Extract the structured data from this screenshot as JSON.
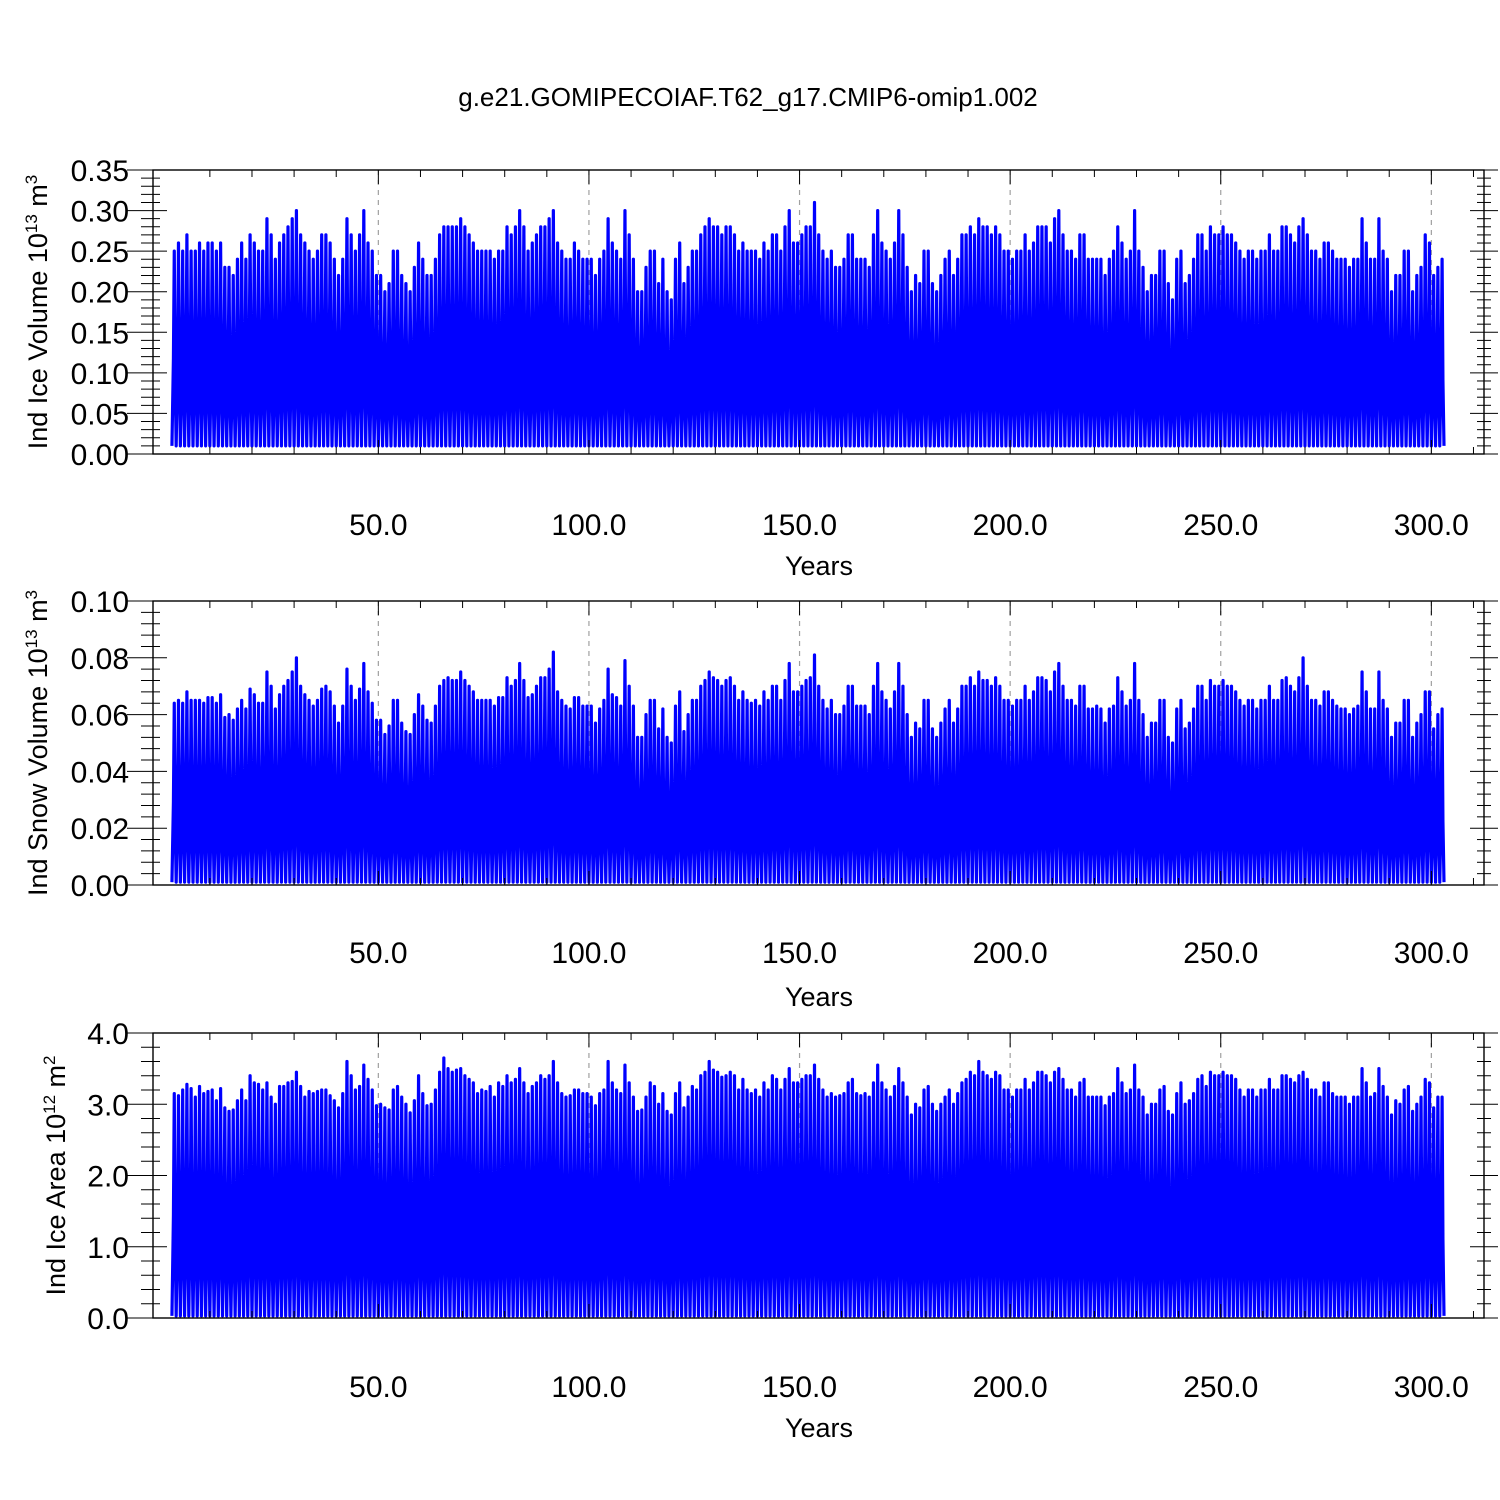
{
  "title": "g.e21.GOMIPECOIAF.T62_g17.CMIP6-omip1.002",
  "colors": {
    "series": "#0000ff",
    "frame": "#000000",
    "grid": "#a0a0a0",
    "background": "#ffffff"
  },
  "chart_data": [
    {
      "type": "line",
      "ylabel": {
        "pre": "Ind Ice Volume 10",
        "exp": "13",
        "mid": " m",
        "exp2": "3"
      },
      "xlabel": "Years",
      "xlim": [
        -3.5,
        312.5
      ],
      "ylim": [
        0,
        0.35
      ],
      "xticks": [
        50,
        100,
        150,
        200,
        250,
        300
      ],
      "xtick_labels": [
        "50.0",
        "100.0",
        "150.0",
        "200.0",
        "250.0",
        "300.0"
      ],
      "yticks": [
        0,
        0.05,
        0.1,
        0.15,
        0.2,
        0.25,
        0.3,
        0.35
      ],
      "ytick_labels": [
        "0.00",
        "0.05",
        "0.10",
        "0.15",
        "0.20",
        "0.25",
        "0.30",
        "0.35"
      ],
      "grid": "vertical dashed at major x ticks",
      "x_start": 1,
      "year_step": 1,
      "min_value": 0.01,
      "annual_max": [
        0.25,
        0.26,
        0.25,
        0.27,
        0.25,
        0.25,
        0.26,
        0.25,
        0.26,
        0.26,
        0.25,
        0.26,
        0.23,
        0.23,
        0.22,
        0.24,
        0.26,
        0.24,
        0.27,
        0.26,
        0.25,
        0.25,
        0.29,
        0.27,
        0.24,
        0.26,
        0.27,
        0.28,
        0.29,
        0.3,
        0.27,
        0.26,
        0.25,
        0.24,
        0.25,
        0.27,
        0.27,
        0.26,
        0.24,
        0.22,
        0.24,
        0.29,
        0.27,
        0.25,
        0.27,
        0.3,
        0.26,
        0.25,
        0.22,
        0.22,
        0.2,
        0.21,
        0.25,
        0.25,
        0.22,
        0.21,
        0.2,
        0.23,
        0.26,
        0.24,
        0.22,
        0.22,
        0.24,
        0.27,
        0.28,
        0.28,
        0.28,
        0.28,
        0.29,
        0.28,
        0.27,
        0.26,
        0.25,
        0.25,
        0.25,
        0.25,
        0.24,
        0.25,
        0.25,
        0.28,
        0.27,
        0.28,
        0.3,
        0.28,
        0.25,
        0.26,
        0.27,
        0.28,
        0.28,
        0.29,
        0.3,
        0.26,
        0.25,
        0.24,
        0.24,
        0.26,
        0.25,
        0.24,
        0.24,
        0.24,
        0.22,
        0.24,
        0.25,
        0.29,
        0.26,
        0.25,
        0.24,
        0.3,
        0.27,
        0.24,
        0.2,
        0.2,
        0.23,
        0.25,
        0.25,
        0.21,
        0.24,
        0.2,
        0.19,
        0.24,
        0.26,
        0.21,
        0.23,
        0.25,
        0.25,
        0.27,
        0.28,
        0.29,
        0.28,
        0.28,
        0.27,
        0.28,
        0.28,
        0.27,
        0.25,
        0.26,
        0.25,
        0.25,
        0.25,
        0.24,
        0.26,
        0.25,
        0.27,
        0.27,
        0.25,
        0.28,
        0.3,
        0.26,
        0.26,
        0.27,
        0.28,
        0.28,
        0.31,
        0.27,
        0.25,
        0.24,
        0.25,
        0.23,
        0.23,
        0.24,
        0.27,
        0.27,
        0.24,
        0.24,
        0.24,
        0.23,
        0.27,
        0.3,
        0.26,
        0.25,
        0.24,
        0.26,
        0.3,
        0.27,
        0.23,
        0.2,
        0.22,
        0.21,
        0.25,
        0.25,
        0.21,
        0.2,
        0.22,
        0.24,
        0.25,
        0.22,
        0.24,
        0.27,
        0.27,
        0.28,
        0.27,
        0.29,
        0.28,
        0.28,
        0.27,
        0.28,
        0.27,
        0.25,
        0.25,
        0.24,
        0.25,
        0.25,
        0.27,
        0.25,
        0.26,
        0.28,
        0.28,
        0.28,
        0.26,
        0.29,
        0.3,
        0.27,
        0.25,
        0.25,
        0.24,
        0.27,
        0.27,
        0.24,
        0.24,
        0.24,
        0.24,
        0.22,
        0.24,
        0.25,
        0.28,
        0.26,
        0.24,
        0.25,
        0.3,
        0.25,
        0.23,
        0.2,
        0.22,
        0.22,
        0.25,
        0.25,
        0.21,
        0.19,
        0.24,
        0.25,
        0.21,
        0.22,
        0.24,
        0.27,
        0.27,
        0.25,
        0.28,
        0.27,
        0.27,
        0.28,
        0.27,
        0.27,
        0.26,
        0.25,
        0.24,
        0.25,
        0.25,
        0.24,
        0.25,
        0.25,
        0.27,
        0.25,
        0.25,
        0.28,
        0.28,
        0.27,
        0.26,
        0.28,
        0.29,
        0.27,
        0.25,
        0.25,
        0.24,
        0.26,
        0.26,
        0.25,
        0.24,
        0.24,
        0.24,
        0.23,
        0.24,
        0.24,
        0.29,
        0.26,
        0.24,
        0.24,
        0.29,
        0.25,
        0.24,
        0.2,
        0.22,
        0.22,
        0.25,
        0.25,
        0.2,
        0.22,
        0.23,
        0.27,
        0.26,
        0.22,
        0.23,
        0.24
      ]
    },
    {
      "type": "line",
      "ylabel": {
        "pre": "Ind Snow Volume 10",
        "exp": "13",
        "mid": " m",
        "exp2": "3"
      },
      "xlabel": "Years",
      "xlim": [
        -3.5,
        312.5
      ],
      "ylim": [
        0,
        0.1
      ],
      "xticks": [
        50,
        100,
        150,
        200,
        250,
        300
      ],
      "xtick_labels": [
        "50.0",
        "100.0",
        "150.0",
        "200.0",
        "250.0",
        "300.0"
      ],
      "yticks": [
        0,
        0.02,
        0.04,
        0.06,
        0.08,
        0.1
      ],
      "ytick_labels": [
        "0.00",
        "0.02",
        "0.04",
        "0.06",
        "0.08",
        "0.10"
      ],
      "grid": "vertical dashed at major x ticks",
      "x_start": 1,
      "year_step": 1,
      "min_value": 0.001,
      "annual_max": [
        0.064,
        0.065,
        0.064,
        0.068,
        0.065,
        0.065,
        0.065,
        0.064,
        0.066,
        0.066,
        0.064,
        0.067,
        0.059,
        0.06,
        0.058,
        0.062,
        0.065,
        0.062,
        0.069,
        0.067,
        0.064,
        0.064,
        0.075,
        0.07,
        0.062,
        0.067,
        0.07,
        0.072,
        0.075,
        0.08,
        0.07,
        0.067,
        0.065,
        0.063,
        0.065,
        0.069,
        0.07,
        0.068,
        0.063,
        0.057,
        0.063,
        0.076,
        0.07,
        0.065,
        0.069,
        0.078,
        0.068,
        0.064,
        0.058,
        0.058,
        0.053,
        0.056,
        0.065,
        0.065,
        0.057,
        0.054,
        0.053,
        0.06,
        0.067,
        0.063,
        0.058,
        0.057,
        0.063,
        0.07,
        0.072,
        0.073,
        0.072,
        0.072,
        0.075,
        0.072,
        0.07,
        0.068,
        0.065,
        0.065,
        0.065,
        0.065,
        0.063,
        0.066,
        0.066,
        0.073,
        0.07,
        0.072,
        0.078,
        0.072,
        0.066,
        0.067,
        0.07,
        0.073,
        0.073,
        0.076,
        0.082,
        0.068,
        0.065,
        0.063,
        0.062,
        0.066,
        0.066,
        0.063,
        0.063,
        0.063,
        0.057,
        0.062,
        0.065,
        0.076,
        0.067,
        0.066,
        0.063,
        0.079,
        0.07,
        0.063,
        0.052,
        0.052,
        0.06,
        0.065,
        0.065,
        0.055,
        0.062,
        0.052,
        0.05,
        0.063,
        0.068,
        0.054,
        0.06,
        0.065,
        0.065,
        0.07,
        0.072,
        0.075,
        0.073,
        0.072,
        0.07,
        0.072,
        0.073,
        0.07,
        0.065,
        0.068,
        0.065,
        0.064,
        0.065,
        0.063,
        0.068,
        0.065,
        0.07,
        0.07,
        0.065,
        0.072,
        0.078,
        0.068,
        0.068,
        0.07,
        0.072,
        0.073,
        0.081,
        0.07,
        0.065,
        0.062,
        0.065,
        0.06,
        0.06,
        0.063,
        0.07,
        0.07,
        0.063,
        0.063,
        0.063,
        0.06,
        0.07,
        0.078,
        0.068,
        0.065,
        0.062,
        0.068,
        0.078,
        0.07,
        0.06,
        0.052,
        0.057,
        0.055,
        0.065,
        0.065,
        0.055,
        0.052,
        0.057,
        0.062,
        0.065,
        0.057,
        0.062,
        0.07,
        0.07,
        0.073,
        0.07,
        0.075,
        0.072,
        0.072,
        0.07,
        0.073,
        0.07,
        0.065,
        0.065,
        0.063,
        0.065,
        0.065,
        0.07,
        0.065,
        0.068,
        0.073,
        0.073,
        0.072,
        0.068,
        0.075,
        0.078,
        0.07,
        0.065,
        0.065,
        0.063,
        0.07,
        0.07,
        0.062,
        0.062,
        0.063,
        0.062,
        0.057,
        0.062,
        0.063,
        0.073,
        0.068,
        0.063,
        0.065,
        0.078,
        0.065,
        0.06,
        0.052,
        0.057,
        0.057,
        0.065,
        0.065,
        0.052,
        0.05,
        0.062,
        0.065,
        0.055,
        0.057,
        0.062,
        0.07,
        0.07,
        0.065,
        0.072,
        0.07,
        0.07,
        0.072,
        0.07,
        0.07,
        0.068,
        0.065,
        0.063,
        0.065,
        0.065,
        0.062,
        0.065,
        0.065,
        0.07,
        0.065,
        0.065,
        0.072,
        0.073,
        0.07,
        0.068,
        0.073,
        0.08,
        0.07,
        0.065,
        0.065,
        0.063,
        0.068,
        0.068,
        0.065,
        0.063,
        0.062,
        0.062,
        0.06,
        0.062,
        0.063,
        0.075,
        0.068,
        0.062,
        0.062,
        0.075,
        0.065,
        0.062,
        0.052,
        0.057,
        0.057,
        0.065,
        0.065,
        0.052,
        0.057,
        0.06,
        0.068,
        0.068,
        0.055,
        0.06,
        0.062
      ]
    },
    {
      "type": "line",
      "ylabel": {
        "pre": "Ind Ice Area 10",
        "exp": "12",
        "mid": " m",
        "exp2": "2"
      },
      "xlabel": "Years",
      "xlim": [
        -3.5,
        312.5
      ],
      "ylim": [
        0,
        4
      ],
      "xticks": [
        50,
        100,
        150,
        200,
        250,
        300
      ],
      "xtick_labels": [
        "50.0",
        "100.0",
        "150.0",
        "200.0",
        "250.0",
        "300.0"
      ],
      "yticks": [
        0,
        1,
        2,
        3,
        4
      ],
      "ytick_labels": [
        "0.0",
        "1.0",
        "2.0",
        "3.0",
        "4.0"
      ],
      "grid": "vertical dashed at major x ticks",
      "x_start": 1,
      "year_step": 1,
      "min_value": 0.03,
      "annual_max": [
        3.15,
        3.12,
        3.2,
        3.28,
        3.22,
        3.1,
        3.25,
        3.15,
        3.18,
        3.2,
        3.05,
        3.22,
        2.95,
        2.9,
        2.92,
        3.05,
        3.2,
        3.05,
        3.4,
        3.3,
        3.28,
        3.2,
        3.3,
        3.1,
        3.0,
        3.25,
        3.25,
        3.3,
        3.32,
        3.45,
        3.25,
        3.1,
        3.18,
        3.15,
        3.18,
        3.2,
        3.2,
        3.12,
        3.05,
        2.95,
        3.15,
        3.6,
        3.4,
        3.2,
        3.25,
        3.55,
        3.35,
        3.2,
        2.98,
        3.0,
        2.95,
        2.92,
        3.2,
        3.25,
        3.1,
        3.0,
        2.88,
        3.05,
        3.4,
        3.15,
        2.98,
        3.0,
        3.2,
        3.45,
        3.65,
        3.5,
        3.45,
        3.48,
        3.5,
        3.4,
        3.35,
        3.3,
        3.15,
        3.2,
        3.18,
        3.25,
        3.1,
        3.3,
        3.25,
        3.4,
        3.3,
        3.35,
        3.5,
        3.3,
        3.15,
        3.25,
        3.3,
        3.4,
        3.35,
        3.4,
        3.6,
        3.3,
        3.15,
        3.1,
        3.12,
        3.2,
        3.2,
        3.15,
        3.15,
        3.1,
        2.98,
        3.15,
        3.2,
        3.6,
        3.3,
        3.2,
        3.15,
        3.55,
        3.3,
        3.1,
        2.9,
        2.92,
        3.1,
        3.3,
        3.25,
        3.0,
        3.15,
        2.9,
        2.85,
        3.15,
        3.3,
        2.95,
        3.1,
        3.25,
        3.2,
        3.4,
        3.45,
        3.6,
        3.48,
        3.45,
        3.38,
        3.4,
        3.45,
        3.4,
        3.2,
        3.35,
        3.2,
        3.15,
        3.2,
        3.1,
        3.3,
        3.2,
        3.4,
        3.35,
        3.2,
        3.35,
        3.5,
        3.3,
        3.3,
        3.35,
        3.4,
        3.4,
        3.55,
        3.35,
        3.2,
        3.1,
        3.15,
        3.1,
        3.12,
        3.15,
        3.3,
        3.35,
        3.15,
        3.12,
        3.15,
        3.1,
        3.3,
        3.55,
        3.3,
        3.2,
        3.1,
        3.25,
        3.5,
        3.3,
        3.1,
        2.85,
        3.0,
        2.95,
        3.2,
        3.25,
        3.0,
        2.9,
        3.0,
        3.1,
        3.2,
        3.0,
        3.15,
        3.3,
        3.35,
        3.45,
        3.4,
        3.6,
        3.45,
        3.4,
        3.35,
        3.45,
        3.4,
        3.2,
        3.2,
        3.1,
        3.2,
        3.2,
        3.35,
        3.2,
        3.3,
        3.45,
        3.45,
        3.4,
        3.3,
        3.45,
        3.5,
        3.35,
        3.2,
        3.2,
        3.1,
        3.3,
        3.35,
        3.1,
        3.1,
        3.1,
        3.1,
        2.98,
        3.1,
        3.15,
        3.5,
        3.3,
        3.15,
        3.2,
        3.55,
        3.2,
        3.1,
        2.85,
        3.0,
        3.0,
        3.2,
        3.25,
        2.9,
        2.85,
        3.15,
        3.3,
        3.0,
        3.05,
        3.15,
        3.35,
        3.4,
        3.25,
        3.45,
        3.4,
        3.4,
        3.45,
        3.4,
        3.4,
        3.35,
        3.2,
        3.1,
        3.2,
        3.2,
        3.1,
        3.2,
        3.2,
        3.35,
        3.2,
        3.2,
        3.4,
        3.4,
        3.35,
        3.3,
        3.4,
        3.45,
        3.35,
        3.2,
        3.2,
        3.1,
        3.3,
        3.3,
        3.15,
        3.1,
        3.1,
        3.1,
        3.0,
        3.1,
        3.1,
        3.5,
        3.3,
        3.1,
        3.15,
        3.5,
        3.25,
        3.1,
        2.85,
        3.05,
        3.0,
        3.2,
        3.25,
        2.9,
        3.0,
        3.1,
        3.35,
        3.3,
        2.95,
        3.1,
        3.1
      ]
    }
  ]
}
